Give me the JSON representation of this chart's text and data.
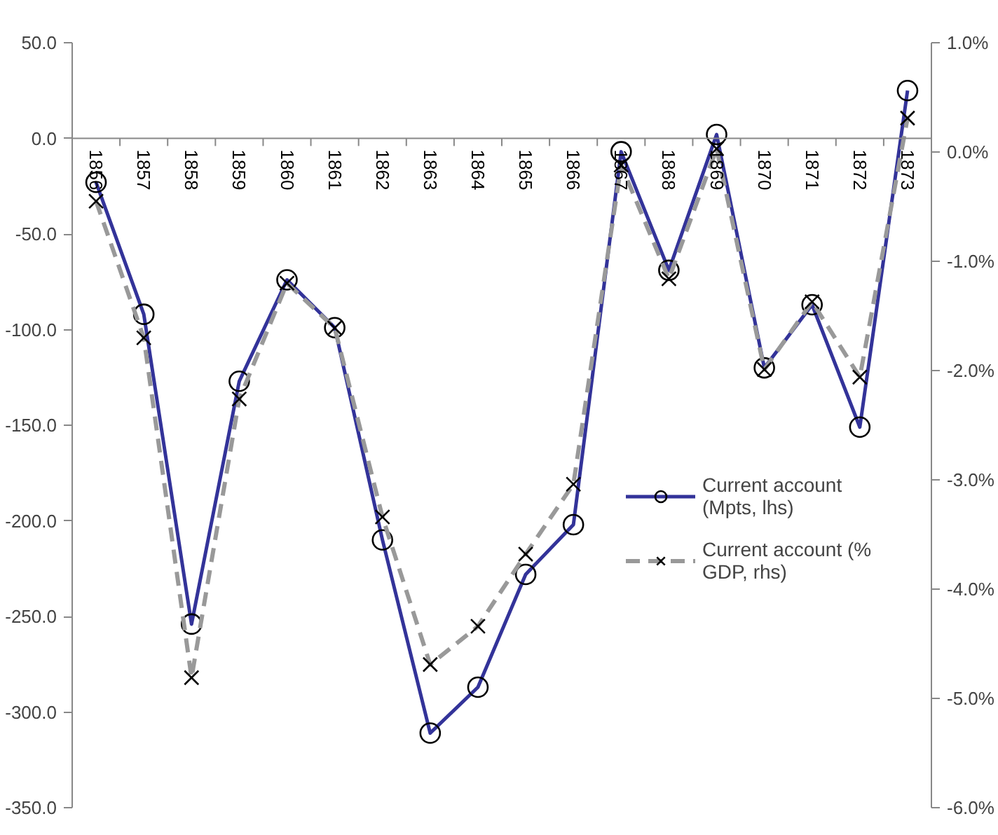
{
  "chart_data": {
    "type": "line",
    "categories": [
      "1856",
      "1857",
      "1858",
      "1859",
      "1860",
      "1861",
      "1862",
      "1863",
      "1864",
      "1865",
      "1866",
      "1867",
      "1868",
      "1869",
      "1870",
      "1871",
      "1872",
      "1873"
    ],
    "series": [
      {
        "name": "Current account (Mpts, lhs)",
        "color": "#333399",
        "marker": "circle",
        "line_style": "solid",
        "values": [
          -23,
          -92,
          -254,
          -127,
          -74,
          -99,
          -210,
          -311,
          -287,
          -228,
          -202,
          -7,
          -69,
          2,
          -120,
          -87,
          -151,
          25
        ]
      },
      {
        "name": "Current account (% GDP, rhs)",
        "color": "#999999",
        "marker": "cross",
        "line_style": "dashed",
        "axis": "y2",
        "values": [
          -0.45,
          -1.7,
          -4.81,
          -2.26,
          -1.2,
          -1.61,
          -3.34,
          -4.69,
          -4.34,
          -3.68,
          -3.04,
          -0.12,
          -1.16,
          0.03,
          -1.99,
          -1.37,
          -2.06,
          0.31
        ]
      }
    ],
    "ylim": [
      -350,
      50
    ],
    "yticks": [
      {
        "value": -350,
        "label": "-350.0"
      },
      {
        "value": -300,
        "label": "-300.0"
      },
      {
        "value": -250,
        "label": "-250.0"
      },
      {
        "value": -200,
        "label": "-200.0"
      },
      {
        "value": -150,
        "label": "-150.0"
      },
      {
        "value": -100,
        "label": "-100.0"
      },
      {
        "value": -50,
        "label": "-50.0"
      },
      {
        "value": 0,
        "label": "0.0"
      },
      {
        "value": 50,
        "label": "50.0"
      }
    ],
    "y2lim": [
      -6,
      1
    ],
    "y2ticks": [
      {
        "value": -6,
        "label": "-6.0%"
      },
      {
        "value": -5,
        "label": "-5.0%"
      },
      {
        "value": -4,
        "label": "-4.0%"
      },
      {
        "value": -3,
        "label": "-3.0%"
      },
      {
        "value": -2,
        "label": "-2.0%"
      },
      {
        "value": -1,
        "label": "-1.0%"
      },
      {
        "value": 0,
        "label": "0.0%"
      },
      {
        "value": 1,
        "label": "1.0%"
      }
    ],
    "grid": false,
    "legend": "right"
  }
}
